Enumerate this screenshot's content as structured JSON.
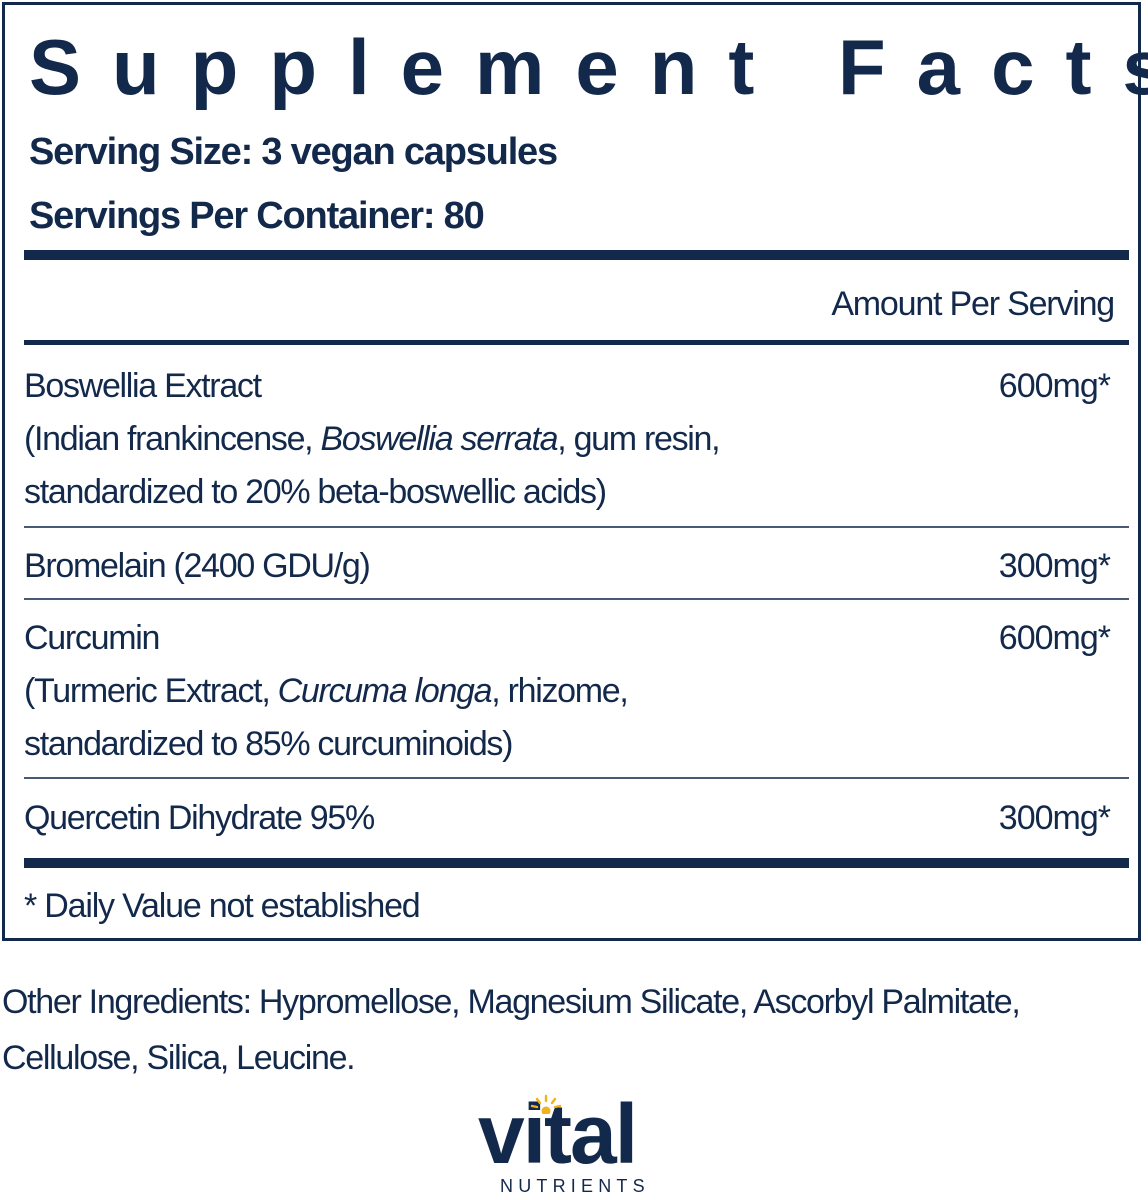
{
  "label": {
    "title": "Supplement Facts",
    "serving_size": "Serving Size: 3 vegan capsules",
    "servings_per_container": "Servings Per Container: 80",
    "amount_header": "Amount Per Serving",
    "ingredients": [
      {
        "name": "Boswellia Extract",
        "desc_line1_pre": "(Indian frankincense, ",
        "desc_line1_italic": "Boswellia serrata",
        "desc_line1_post": ", gum resin,",
        "desc_line2": "standardized to 20% beta-boswellic acids)",
        "amount": "600mg*"
      },
      {
        "name": "Bromelain (2400 GDU/g)",
        "amount": "300mg*"
      },
      {
        "name": "Curcumin",
        "desc_line1_pre": "(Turmeric Extract, ",
        "desc_line1_italic": "Curcuma longa",
        "desc_line1_post": ", rhizome,",
        "desc_line2": "standardized to 85% curcuminoids)",
        "amount": "600mg*"
      },
      {
        "name": "Quercetin Dihydrate 95%",
        "amount": "300mg*"
      }
    ],
    "footnote": "* Daily Value not established"
  },
  "other_ingredients": {
    "line1": "Other Ingredients: Hypromellose, Magnesium Silicate, Ascorbyl Palmitate,",
    "line2": "Cellulose, Silica, Leucine."
  },
  "brand": {
    "name": "vital",
    "subtitle": "NUTRIENTS",
    "colors": {
      "navy": "#13294b",
      "sun": "#f2b21b"
    },
    "icon": "sun-icon"
  }
}
